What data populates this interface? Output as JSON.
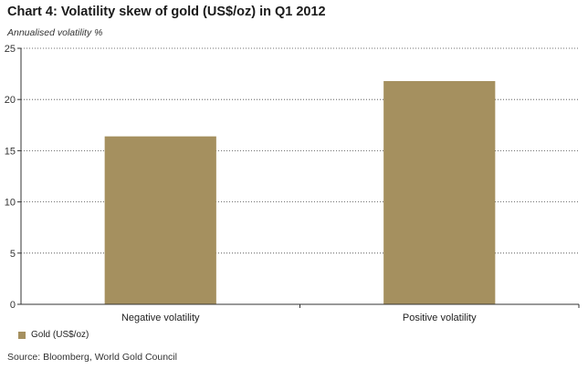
{
  "title": "Chart 4: Volatility skew of gold (US$/oz) in Q1 2012",
  "source": "Source: Bloomberg, World Gold Council",
  "colors": {
    "bar": "#a5905f",
    "grid": "#444444",
    "axis": "#333333"
  },
  "chart_data": {
    "type": "bar",
    "ylabel": "Annualised volatility %",
    "categories": [
      "Negative volatility",
      "Positive volatility"
    ],
    "series": [
      {
        "name": "Gold (US$/oz)",
        "values": [
          16.4,
          21.8
        ]
      }
    ],
    "ylim": [
      0,
      25
    ],
    "yticks": [
      0,
      5,
      10,
      15,
      20,
      25
    ],
    "grid": true,
    "legend": "bottom-left"
  }
}
